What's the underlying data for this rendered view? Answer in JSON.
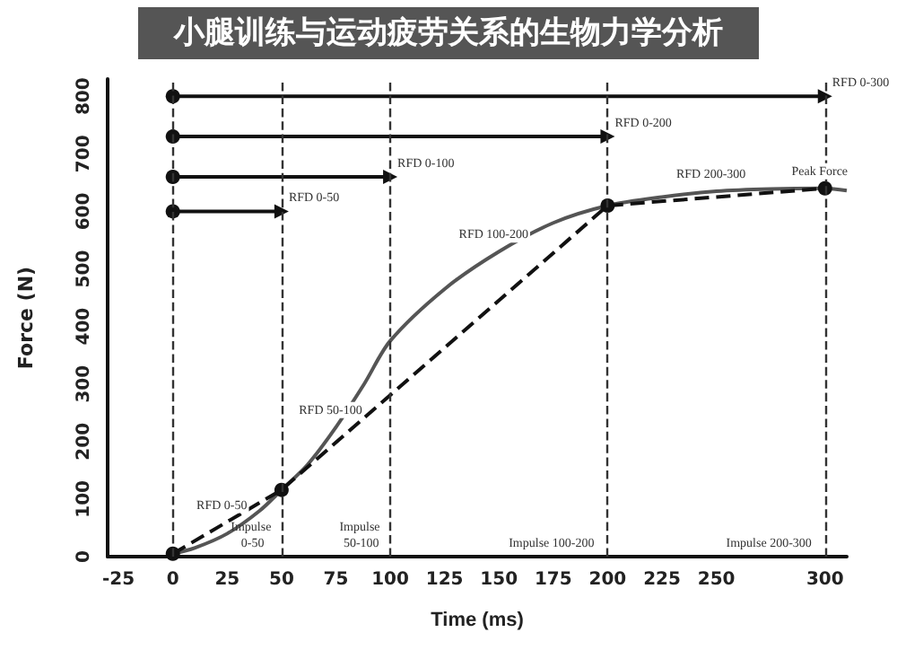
{
  "chart_data": {
    "type": "line",
    "title": "小腿训练与运动疲劳关系的生物力学分析",
    "xlabel": "Time (ms)",
    "ylabel": "Force (N)",
    "xlim": [
      -30,
      310
    ],
    "xticks": [
      -25,
      0,
      25,
      50,
      75,
      100,
      125,
      150,
      175,
      200,
      225,
      250,
      300
    ],
    "ylim": [
      0,
      830
    ],
    "yticks": [
      0,
      100,
      200,
      300,
      400,
      500,
      600,
      700,
      800
    ],
    "grid": false,
    "series": [
      {
        "color": "#555555",
        "marker": "none",
        "line_style": "solid",
        "x": [
          0,
          10,
          25,
          40,
          50,
          62,
          75,
          88,
          100,
          125,
          150,
          175,
          200,
          225,
          250,
          275,
          300,
          310
        ],
        "values": [
          5,
          15,
          40,
          80,
          116,
          160,
          225,
          300,
          375,
          465,
          530,
          580,
          610,
          625,
          635,
          639,
          640,
          636
        ]
      },
      {
        "color": "#111111",
        "marker": "circle",
        "line_style": "dashed",
        "x": [
          0,
          50,
          200,
          300
        ],
        "values": [
          5,
          116,
          610,
          640
        ]
      },
      {
        "color": "#111111",
        "marker": "circle",
        "line_style": "solid",
        "x": [
          0,
          300
        ],
        "values": [
          800,
          800
        ]
      },
      {
        "color": "#111111",
        "marker": "circle",
        "line_style": "solid",
        "x": [
          0,
          200
        ],
        "values": [
          730,
          730
        ]
      },
      {
        "color": "#111111",
        "marker": "circle",
        "line_style": "solid",
        "x": [
          0,
          100
        ],
        "values": [
          660,
          660
        ]
      },
      {
        "color": "#111111",
        "marker": "circle",
        "line_style": "solid",
        "x": [
          0,
          50
        ],
        "values": [
          600,
          600
        ]
      }
    ],
    "ref_lines": [
      {
        "axis": "x",
        "value": 0,
        "line_style": "dashed",
        "color": "#333333"
      },
      {
        "axis": "x",
        "value": 50,
        "line_style": "dashed",
        "color": "#333333"
      },
      {
        "axis": "x",
        "value": 100,
        "line_style": "dashed",
        "color": "#333333"
      },
      {
        "axis": "x",
        "value": 200,
        "line_style": "dashed",
        "color": "#333333"
      },
      {
        "axis": "x",
        "value": 300,
        "line_style": "dashed",
        "color": "#333333"
      }
    ],
    "annotations": [
      {
        "text": "RFD 0-300",
        "x": 300,
        "y": 800
      },
      {
        "text": "RFD 0-200",
        "x": 200,
        "y": 730
      },
      {
        "text": "RFD 0-100",
        "x": 100,
        "y": 660
      },
      {
        "text": "RFD 0-50",
        "x": 50,
        "y": 600
      },
      {
        "text": "Peak Force",
        "x": 300,
        "y": 640
      },
      {
        "text": "RFD 0-50",
        "x": 25,
        "y": 60
      },
      {
        "text": "RFD 50-100",
        "x": 75,
        "y": 225
      },
      {
        "text": "RFD 100-200",
        "x": 150,
        "y": 530
      },
      {
        "text": "RFD 200-300",
        "x": 250,
        "y": 635
      },
      "Impulse 0-50",
      "Impulse 50-100",
      "Impulse 100-200",
      "Impulse 200-300"
    ]
  }
}
